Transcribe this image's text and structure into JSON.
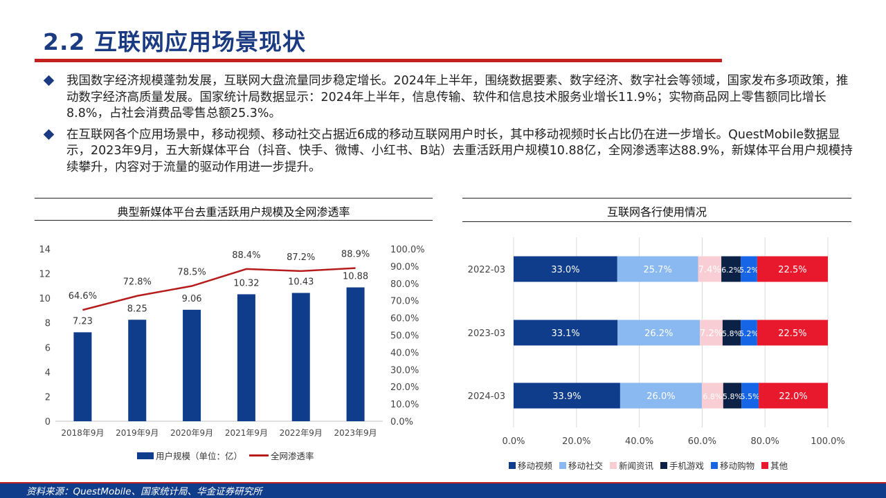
{
  "page": {
    "title": "2.2 互联网应用场景现状",
    "bullets": [
      "我国数字经济规模蓬勃发展，互联网大盘流量同步稳定增长。2024年上半年，围绕数据要素、数字经济、数字社会等领域，国家发布多项政策，推动数字经济高质量发展。国家统计局数据显示：2024年上半年，信息传输、软件和信息技术服务业增长11.9%；实物商品网上零售额同比增长8.8%，占社会消费品零售总额25.3%。",
      "在互联网各个应用场景中，移动视频、移动社交占据近6成的移动互联网用户时长，其中移动视频时长占比仍在进一步增长。QuestMobile数据显示，2023年9月，五大新媒体平台（抖音、快手、微博、小红书、B站）去重活跃用户规模10.88亿，全网渗透率达88.9%，新媒体平台用户规模持续攀升，内容对于流量的驱动作用进一步提升。"
    ],
    "footer": "资料来源：QuestMobile、国家统计局、华金证券研究所"
  },
  "chart_data": [
    {
      "type": "bar",
      "title": "典型新媒体平台去重活跃用户规模及全网渗透率",
      "categories": [
        "2018年9月",
        "2019年9月",
        "2020年9月",
        "2021年9月",
        "2022年9月",
        "2023年9月"
      ],
      "series": [
        {
          "name": "用户规模（单位：亿）",
          "type": "bar",
          "axis": "left",
          "color": "#0f3d8c",
          "values": [
            7.23,
            8.25,
            9.06,
            10.32,
            10.43,
            10.88
          ],
          "labels": [
            "7.23",
            "8.25",
            "9.06",
            "10.32",
            "10.43",
            "10.88"
          ]
        },
        {
          "name": "全网渗透率",
          "type": "line",
          "axis": "right",
          "color": "#b71c1c",
          "values": [
            64.6,
            72.8,
            78.5,
            88.4,
            87.2,
            88.9
          ],
          "labels": [
            "64.6%",
            "72.8%",
            "78.5%",
            "88.4%",
            "87.2%",
            "88.9%"
          ]
        }
      ],
      "ylim": [
        0,
        14
      ],
      "yticks": [
        "0",
        "2",
        "4",
        "6",
        "8",
        "10",
        "12",
        "14"
      ],
      "y2lim": [
        0,
        100
      ],
      "y2ticks": [
        "0.0%",
        "10.0%",
        "20.0%",
        "30.0%",
        "40.0%",
        "50.0%",
        "60.0%",
        "70.0%",
        "80.0%",
        "90.0%",
        "100.0%"
      ],
      "grid": false,
      "legend": "bottom"
    },
    {
      "type": "bar",
      "orientation": "horizontal",
      "stacked": true,
      "title": "互联网各行使用情况",
      "categories": [
        "2022-03",
        "2023-03",
        "2024-03"
      ],
      "series": [
        {
          "name": "移动视频",
          "color": "#0f3d8c",
          "values": [
            33.0,
            33.1,
            33.9
          ],
          "labels": [
            "33.0%",
            "33.1%",
            "33.9%"
          ]
        },
        {
          "name": "移动社交",
          "color": "#8ab8f0",
          "values": [
            25.7,
            26.2,
            26.0
          ],
          "labels": [
            "25.7%",
            "26.2%",
            "26.0%"
          ]
        },
        {
          "name": "新闻资讯",
          "color": "#f8cdd3",
          "values": [
            7.4,
            7.2,
            6.8
          ],
          "labels": [
            "7.4%",
            "7.2%",
            "6.8%"
          ]
        },
        {
          "name": "手机游戏",
          "color": "#0b2146",
          "values": [
            6.2,
            5.8,
            5.8
          ],
          "labels": [
            "6.2%",
            "5.8%",
            "5.8%"
          ]
        },
        {
          "name": "移动购物",
          "color": "#1565e6",
          "values": [
            5.2,
            5.2,
            5.5
          ],
          "labels": [
            "5.2%",
            "5.2%",
            "5.5%"
          ]
        },
        {
          "name": "其他",
          "color": "#e8192c",
          "values": [
            22.5,
            22.5,
            22.0
          ],
          "labels": [
            "22.5%",
            "22.5%",
            "22.0%"
          ]
        }
      ],
      "xlim": [
        0,
        100
      ],
      "xticks": [
        "0.0%",
        "20.0%",
        "40.0%",
        "60.0%",
        "80.0%",
        "100.0%"
      ],
      "grid": true,
      "legend": "bottom"
    }
  ]
}
